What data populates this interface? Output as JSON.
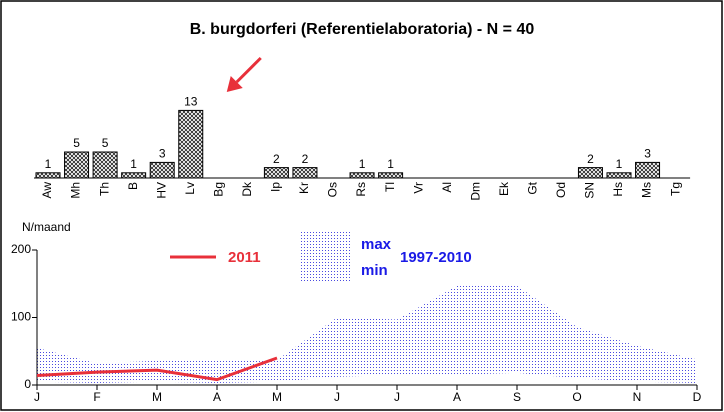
{
  "chart_data": [
    {
      "type": "bar",
      "title": "B. burgdorferi (Referentielaboratoria) - N = 40",
      "categories": [
        "Aw",
        "Mh",
        "Th",
        "B",
        "HV",
        "Lv",
        "Bg",
        "Dk",
        "Ip",
        "Kr",
        "Os",
        "Rs",
        "Tl",
        "Vr",
        "Al",
        "Dm",
        "Ek",
        "Gt",
        "Od",
        "SN",
        "Hs",
        "Ms",
        "Tg"
      ],
      "values": [
        1,
        5,
        5,
        1,
        3,
        13,
        0,
        0,
        2,
        2,
        0,
        1,
        1,
        0,
        0,
        0,
        0,
        0,
        0,
        2,
        1,
        3,
        0
      ],
      "color": "#000000",
      "highlight_color": "#e8303a"
    },
    {
      "type": "line",
      "ylabel": "N/maand",
      "categories": [
        "J",
        "F",
        "M",
        "A",
        "M",
        "J",
        "J",
        "A",
        "S",
        "O",
        "N",
        "D"
      ],
      "ylim": [
        0,
        200
      ],
      "yticks": [
        0,
        100,
        200
      ],
      "band_label": "1997-2010",
      "series": [
        {
          "name": "2011",
          "color": "#e8303a",
          "values": [
            14,
            19,
            22,
            8,
            40,
            null,
            null,
            null,
            null,
            null,
            null,
            null
          ]
        },
        {
          "name": "max",
          "color": "#1a1ae6",
          "values": [
            55,
            32,
            36,
            36,
            37,
            100,
            97,
            147,
            147,
            86,
            58,
            38
          ]
        },
        {
          "name": "min",
          "color": "#1a1ae6",
          "values": [
            5,
            3,
            5,
            3,
            5,
            12,
            15,
            15,
            18,
            10,
            5,
            3
          ]
        }
      ]
    }
  ]
}
